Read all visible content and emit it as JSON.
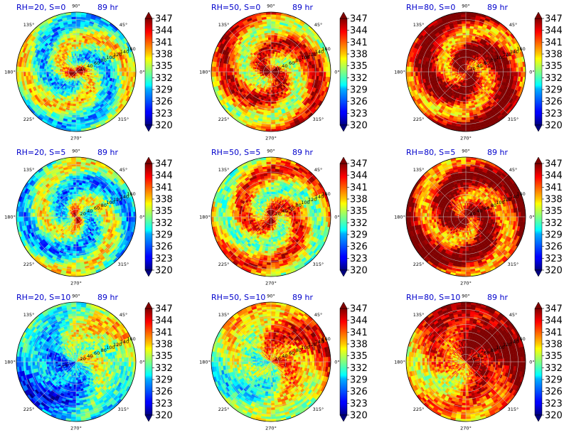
{
  "chart_data": {
    "type": "heatmap",
    "projection": "polar",
    "time_label": "89 hr",
    "angle_ticks": [
      "0°",
      "45°",
      "90°",
      "135°",
      "180°",
      "225°",
      "270°",
      "315°"
    ],
    "radius_ticks": [
      "20",
      "40",
      "60",
      "80",
      "100",
      "120",
      "140",
      "160"
    ],
    "colorbar": {
      "colormap": "jet",
      "range": [
        320,
        347
      ],
      "extend": "both",
      "ticks": [
        "320",
        "323",
        "326",
        "329",
        "332",
        "335",
        "338",
        "341",
        "344",
        "347"
      ]
    },
    "panels": [
      {
        "title": "RH=20, S=0",
        "rh": 20,
        "shear": 0,
        "time": "89 hr",
        "core_value": 347,
        "background_value": 333,
        "pattern": "spiral"
      },
      {
        "title": "RH=50, S=0",
        "rh": 50,
        "shear": 0,
        "time": "89 hr",
        "core_value": 347,
        "background_value": 340,
        "pattern": "spiral"
      },
      {
        "title": "RH=80, S=0",
        "rh": 80,
        "shear": 0,
        "time": "89 hr",
        "core_value": 348,
        "background_value": 344,
        "pattern": "spiral"
      },
      {
        "title": "RH=20, S=5",
        "rh": 20,
        "shear": 5,
        "time": "89 hr",
        "core_value": 345,
        "background_value": 332,
        "pattern": "spiral"
      },
      {
        "title": "RH=50, S=5",
        "rh": 50,
        "shear": 5,
        "time": "89 hr",
        "core_value": 347,
        "background_value": 338,
        "pattern": "spiral"
      },
      {
        "title": "RH=80, S=5",
        "rh": 80,
        "shear": 5,
        "time": "89 hr",
        "core_value": 348,
        "background_value": 344,
        "pattern": "spiral"
      },
      {
        "title": "RH=20, S=10",
        "rh": 20,
        "shear": 10,
        "time": "89 hr",
        "core_value": 336,
        "background_value": 331,
        "pattern": "sheared"
      },
      {
        "title": "RH=50, S=10",
        "rh": 50,
        "shear": 10,
        "time": "89 hr",
        "core_value": 340,
        "background_value": 337,
        "pattern": "sheared"
      },
      {
        "title": "RH=80, S=10",
        "rh": 80,
        "shear": 10,
        "time": "89 hr",
        "core_value": 344,
        "background_value": 343,
        "pattern": "sheared"
      }
    ]
  }
}
